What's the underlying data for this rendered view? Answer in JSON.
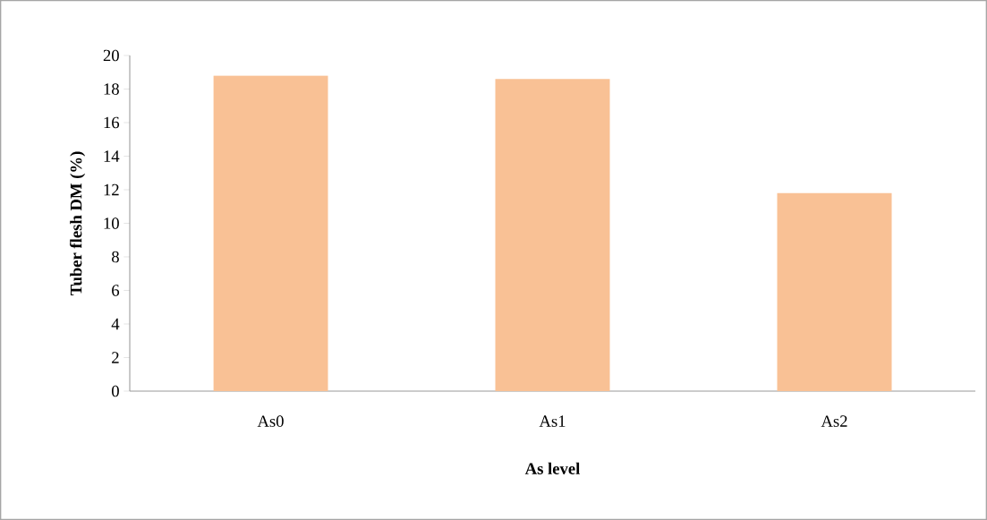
{
  "chart_data": {
    "type": "bar",
    "xlabel": "As level",
    "ylabel": "Tuber flesh DM (%)",
    "categories": [
      "As0",
      "As1",
      "As2"
    ],
    "values": [
      18.8,
      18.6,
      11.8
    ],
    "color": "#f9c195",
    "ylim": [
      0,
      20
    ],
    "yticks": [
      0,
      2,
      4,
      6,
      8,
      10,
      12,
      14,
      16,
      18,
      20
    ]
  }
}
